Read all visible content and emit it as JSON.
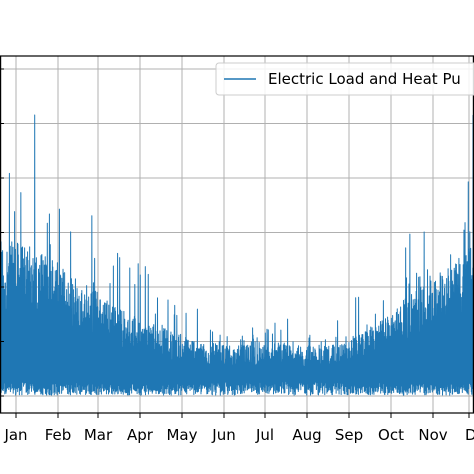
{
  "chart_data": {
    "type": "line",
    "x_tick_labels": [
      "Jan",
      "Feb",
      "Mar",
      "Apr",
      "May",
      "Jun",
      "Jul",
      "Aug",
      "Sep",
      "Oct",
      "Nov",
      "Dec"
    ],
    "x_tick_labels_visible": [
      "Jan",
      "Feb",
      "Mar",
      "Apr",
      "May",
      "Jun",
      "Jul",
      "Aug",
      "Sep",
      "Oct",
      "Nov",
      "D"
    ],
    "y_tick_count": 7,
    "grid": true,
    "legend_position": "top-right",
    "series": [
      {
        "name": "Electric Load and Heat Pu",
        "color": "#1f77b4",
        "envelope": {
          "month_index": [
            0,
            0.5,
            1,
            1.5,
            2,
            2.5,
            3,
            3.5,
            4,
            4.5,
            5,
            5.5,
            6,
            6.5,
            7,
            7.5,
            8,
            8.5,
            9,
            9.5,
            10,
            10.5,
            11,
            11.5
          ],
          "peak": [
            0.72,
            0.98,
            0.86,
            0.62,
            0.55,
            0.7,
            0.45,
            0.42,
            0.4,
            0.3,
            0.25,
            0.24,
            0.28,
            0.3,
            0.31,
            0.28,
            0.3,
            0.4,
            0.55,
            0.52,
            0.55,
            0.6,
            0.7,
            0.85
          ],
          "typical_high": [
            0.48,
            0.46,
            0.42,
            0.38,
            0.34,
            0.3,
            0.26,
            0.24,
            0.22,
            0.2,
            0.19,
            0.19,
            0.19,
            0.19,
            0.19,
            0.19,
            0.2,
            0.24,
            0.28,
            0.34,
            0.38,
            0.42,
            0.46,
            0.5
          ],
          "baseline": [
            0.05,
            0.05,
            0.05,
            0.05,
            0.05,
            0.05,
            0.05,
            0.05,
            0.05,
            0.05,
            0.05,
            0.05,
            0.05,
            0.05,
            0.05,
            0.05,
            0.05,
            0.05,
            0.05,
            0.05,
            0.05,
            0.05,
            0.05,
            0.05
          ]
        }
      }
    ]
  }
}
